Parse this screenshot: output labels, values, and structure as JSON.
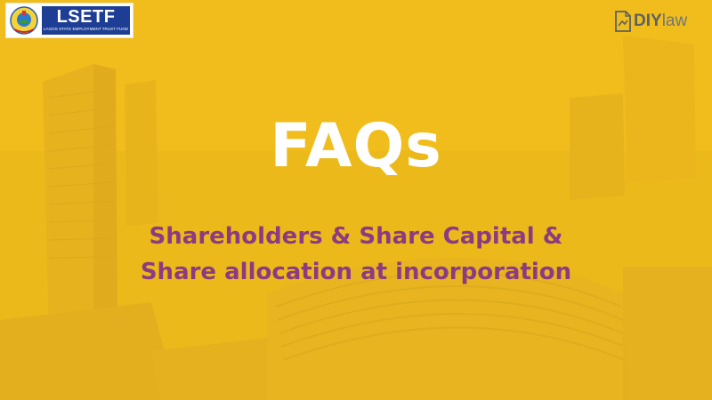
{
  "brand_left": {
    "name": "LSETF",
    "tagline": "LAGOS STATE EMPLOYMENT TRUST FUND"
  },
  "brand_right": {
    "name_bold": "DIY",
    "name_light": "law"
  },
  "slide": {
    "title": "FAQs",
    "subtitle_line1": "Shareholders & Share Capital &",
    "subtitle_line2": "Share allocation at incorporation"
  },
  "colors": {
    "background_overlay": "#f0bd1c",
    "title": "#ffffff",
    "subtitle": "#8c3b82",
    "lsetf_blue": "#1d3e94"
  }
}
